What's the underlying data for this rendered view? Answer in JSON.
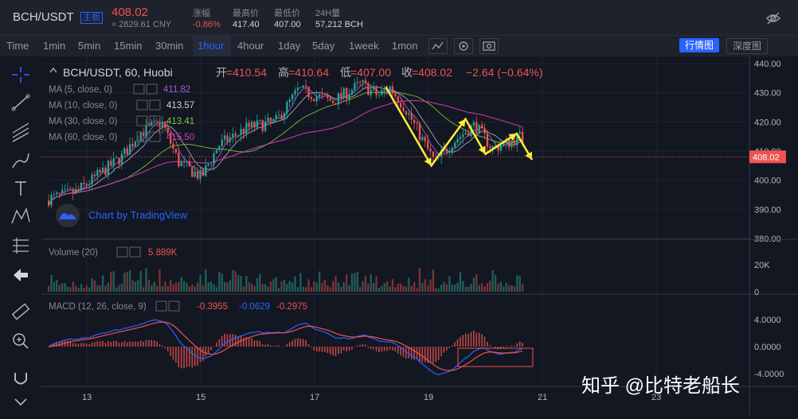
{
  "header": {
    "symbol": "BCH/USDT",
    "badge": "主板",
    "price": "408.02",
    "cny": "≈ 2829.61 CNY",
    "stats": [
      {
        "label": "涨幅",
        "value": "-0.86%",
        "color": "#ef5350"
      },
      {
        "label": "最高价",
        "value": "417.40",
        "color": "#d1d4dc"
      },
      {
        "label": "最低价",
        "value": "407.00",
        "color": "#d1d4dc"
      },
      {
        "label": "24H量",
        "value": "57,212 BCH",
        "color": "#d1d4dc"
      }
    ]
  },
  "toolbar": {
    "time_label": "Time",
    "timeframes": [
      "1min",
      "5min",
      "15min",
      "30min",
      "1hour",
      "4hour",
      "1day",
      "5day",
      "1week",
      "1mon"
    ],
    "active_timeframe": "1hour",
    "view_market": "行情图",
    "view_depth": "深度图"
  },
  "legend": {
    "title": "BCH/USDT, 60, Huobi",
    "open_label": "开",
    "open": "=410.54",
    "high_label": "高",
    "high": "=410.64",
    "low_label": "低",
    "low": "=407.00",
    "close_label": "收",
    "close": "=408.02",
    "change": "−2.64 (−0.64%)",
    "ma": [
      {
        "label": "MA (5, close, 0)",
        "value": "411.82",
        "color": "#a45ed9"
      },
      {
        "label": "MA (10, close, 0)",
        "value": "413.57",
        "color": "#d1d4dc"
      },
      {
        "label": "MA (30, close, 0)",
        "value": "413.41",
        "color": "#7ccb3a"
      },
      {
        "label": "MA (60, close, 0)",
        "value": "415.50",
        "color": "#d63aa8"
      }
    ],
    "tradingview": "Chart by TradingView",
    "volume_label": "Volume (20)",
    "volume_value": "5.889K",
    "macd_label": "MACD (12, 26, close, 9)",
    "macd_values": [
      "-0.3955",
      "-0.0629",
      "-0.2975"
    ]
  },
  "chart_data": {
    "type": "candlestick",
    "symbol": "BCH/USDT",
    "interval": "60",
    "exchange": "Huobi",
    "price_axis": {
      "ticks": [
        "440.00",
        "430.00",
        "420.00",
        "410.00",
        "400.00",
        "390.00",
        "380.00"
      ],
      "ylim": [
        380,
        440
      ]
    },
    "last_price": "408.02",
    "volume_axis": {
      "ticks": [
        "20K",
        "0"
      ]
    },
    "macd_axis": {
      "ticks": [
        "4.0000",
        "0.0000",
        "-4.0000"
      ]
    },
    "x_ticks": [
      "13",
      "15",
      "17",
      "19",
      "21",
      "23"
    ],
    "price_path": [
      {
        "d": 12.2,
        "p": 393
      },
      {
        "d": 12.8,
        "p": 396
      },
      {
        "d": 13.2,
        "p": 402
      },
      {
        "d": 13.6,
        "p": 408
      },
      {
        "d": 13.9,
        "p": 416
      },
      {
        "d": 14.3,
        "p": 420
      },
      {
        "d": 14.6,
        "p": 406
      },
      {
        "d": 15.0,
        "p": 401
      },
      {
        "d": 15.3,
        "p": 412
      },
      {
        "d": 15.8,
        "p": 418
      },
      {
        "d": 16.3,
        "p": 420
      },
      {
        "d": 16.7,
        "p": 431
      },
      {
        "d": 17.3,
        "p": 427
      },
      {
        "d": 17.8,
        "p": 433
      },
      {
        "d": 18.1,
        "p": 429
      },
      {
        "d": 18.3,
        "p": 432
      },
      {
        "d": 18.6,
        "p": 424
      },
      {
        "d": 18.9,
        "p": 413
      },
      {
        "d": 19.1,
        "p": 406
      },
      {
        "d": 19.4,
        "p": 413
      },
      {
        "d": 19.8,
        "p": 419
      },
      {
        "d": 20.1,
        "p": 411
      },
      {
        "d": 20.4,
        "p": 413
      },
      {
        "d": 20.6,
        "p": 415
      },
      {
        "d": 20.8,
        "p": 409
      }
    ],
    "annotation_path": [
      {
        "d": 18.25,
        "p": 432
      },
      {
        "d": 19.05,
        "p": 405
      },
      {
        "d": 19.65,
        "p": 421
      },
      {
        "d": 20.0,
        "p": 409
      },
      {
        "d": 20.55,
        "p": 416
      },
      {
        "d": 20.82,
        "p": 407
      }
    ],
    "colors": {
      "up": "#26a69a",
      "down": "#ef5350",
      "annotation": "#ffeb3b"
    }
  },
  "watermark": "知乎 @比特老船长"
}
